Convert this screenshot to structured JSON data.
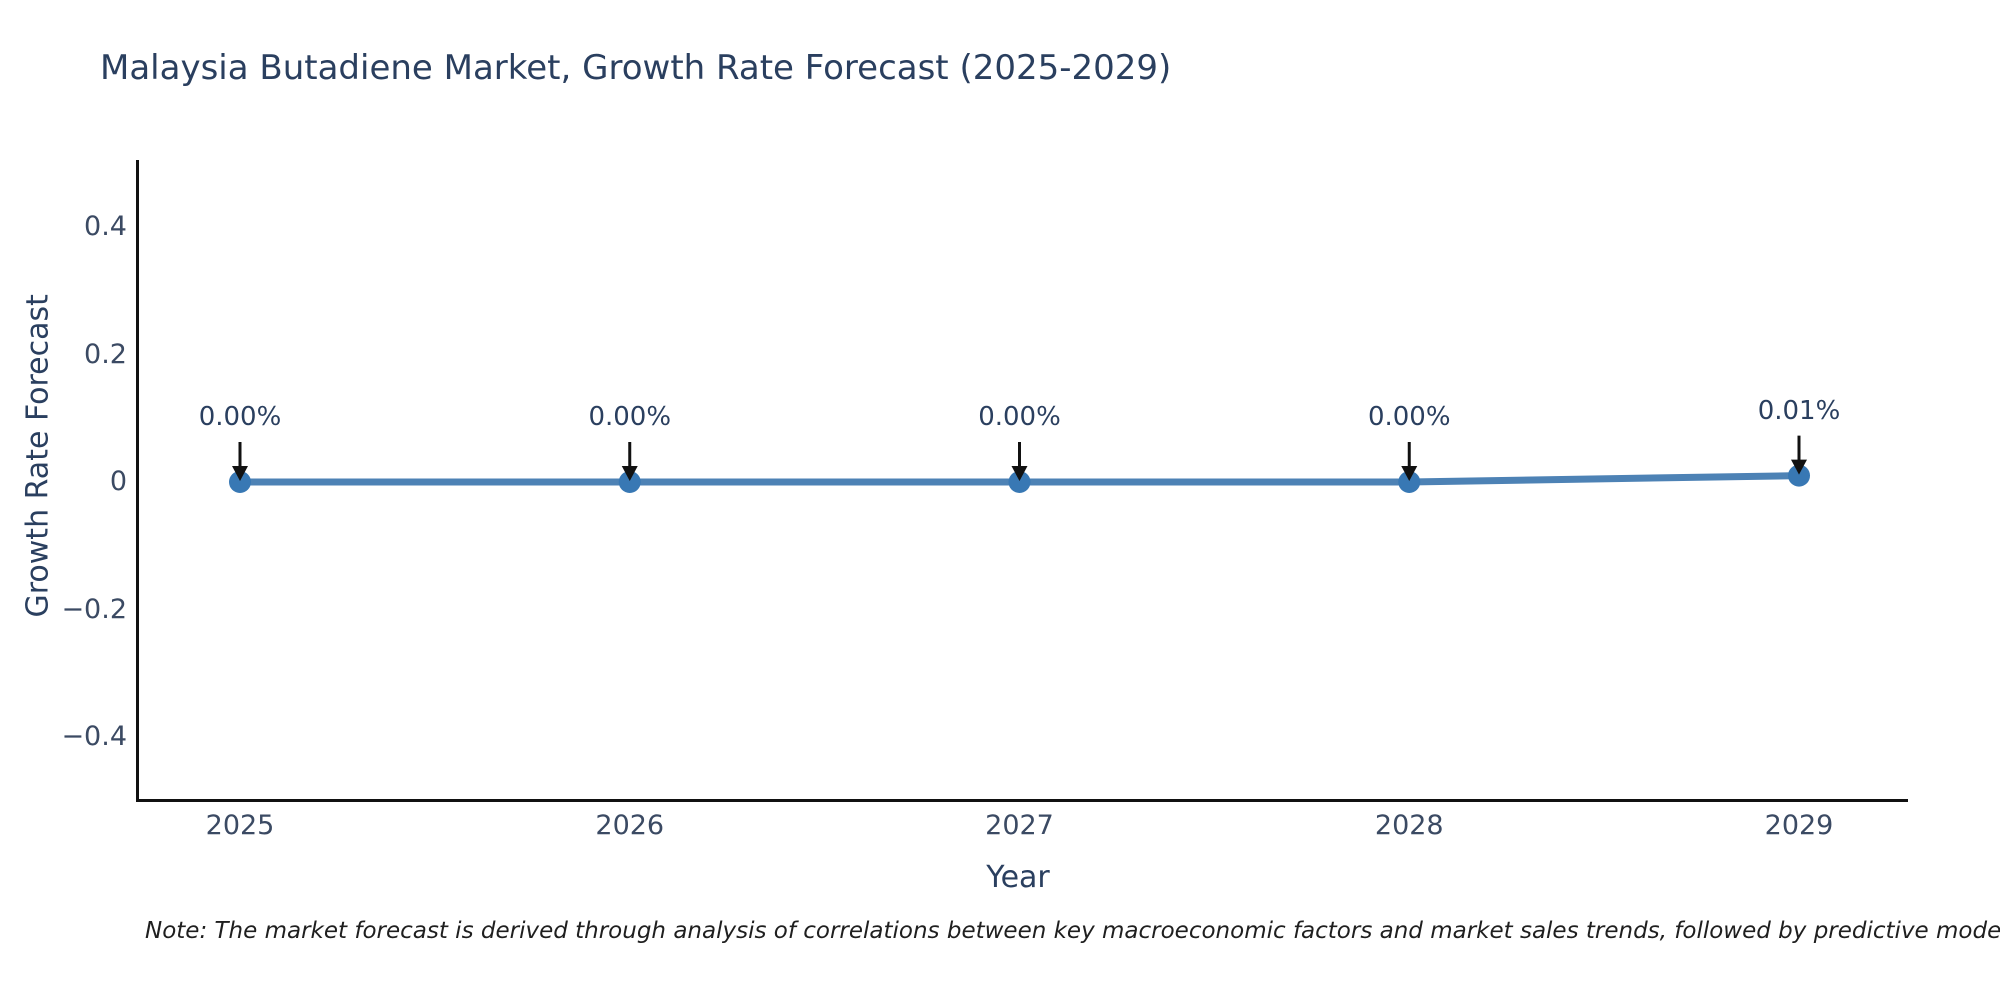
{
  "header": {
    "title": "Malaysia Butadiene Market, Growth Rate Forecast (2025-2029)"
  },
  "chart_data": {
    "type": "line",
    "title": "Malaysia Butadiene Market, Growth Rate Forecast (2025-2029)",
    "xlabel": "Year",
    "ylabel": "Growth Rate Forecast",
    "x": [
      2025,
      2026,
      2027,
      2028,
      2029
    ],
    "values": [
      0.0,
      0.0,
      0.0,
      0.0,
      0.01
    ],
    "point_labels": [
      "0.00%",
      "0.00%",
      "0.00%",
      "0.00%",
      "0.01%"
    ],
    "xtick_labels": [
      "2025",
      "2026",
      "2027",
      "2028",
      "2029"
    ],
    "yticks": [
      0.4,
      0.2,
      0,
      -0.2,
      -0.4
    ],
    "ytick_labels": [
      "0.4",
      "0.2",
      "0",
      "−0.2",
      "−0.4"
    ],
    "ylim": [
      -0.5,
      0.5
    ],
    "xlim": [
      2024.75,
      2029.27
    ],
    "grid": false,
    "legend": false,
    "line_color": "#4d82b5",
    "marker_color": "#3878b4",
    "arrow_color": "#111111",
    "axis_color": "#111111"
  },
  "footer": {
    "note": "Note: The market forecast is derived through analysis of correlations between key macroeconomic factors and market sales trends, followed by predictive modeling to project future sa"
  }
}
